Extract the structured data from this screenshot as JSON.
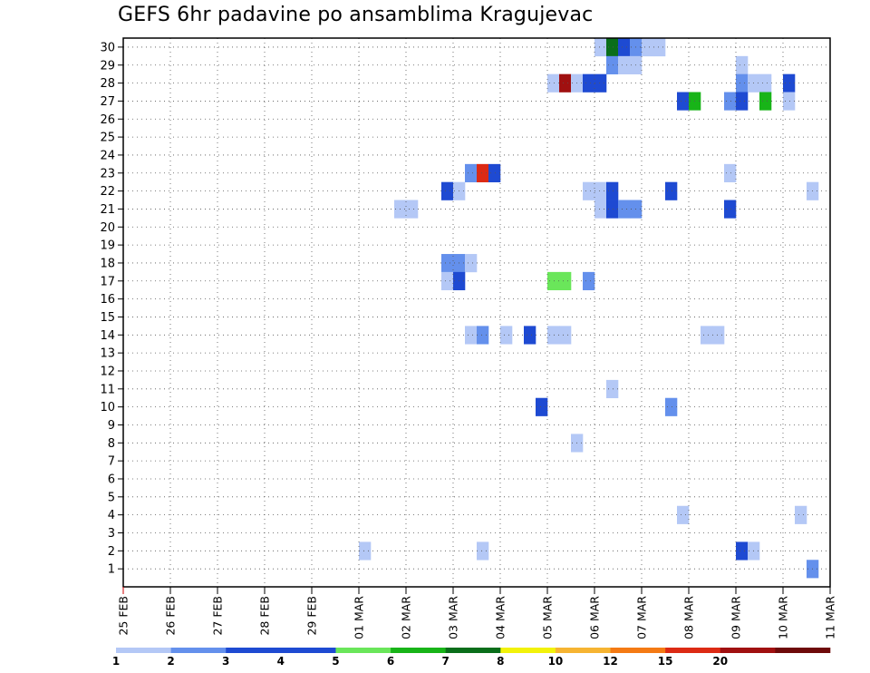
{
  "chart_data": {
    "type": "heatmap",
    "title": "GEFS 6hr padavine po ansamblima Kragujevac",
    "x_start": "25 FEB",
    "x_end": "11 MAR",
    "x_ticks": [
      "25 FEB",
      "26 FEB",
      "27 FEB",
      "28 FEB",
      "29 FEB",
      "01 MAR",
      "02 MAR",
      "03 MAR",
      "04 MAR",
      "05 MAR",
      "06 MAR",
      "07 MAR",
      "08 MAR",
      "09 MAR",
      "10 MAR",
      "11 MAR"
    ],
    "y_ticks": [
      "1",
      "2",
      "3",
      "4",
      "5",
      "6",
      "7",
      "8",
      "9",
      "10",
      "11",
      "12",
      "13",
      "14",
      "15",
      "16",
      "17",
      "18",
      "19",
      "20",
      "21",
      "22",
      "23",
      "24",
      "25",
      "26",
      "27",
      "28",
      "29",
      "30"
    ],
    "grid": true,
    "colorbar": {
      "labels": [
        "1",
        "2",
        "3",
        "4",
        "5",
        "6",
        "7",
        "8",
        "10",
        "12",
        "15",
        "20"
      ],
      "colors": [
        "#b4c8f6",
        "#6490ec",
        "#1e4ad2",
        "#1e4ad2",
        "#6ae65a",
        "#18b418",
        "#0a6e1a",
        "#f2f20a",
        "#f6b432",
        "#f47a14",
        "#dc2a14",
        "#a01010",
        "#6e0a0a"
      ]
    },
    "cells": [
      {
        "member": 30,
        "day": "06 MAR",
        "hour": 0,
        "c": 1
      },
      {
        "member": 30,
        "day": "06 MAR",
        "hour": 6,
        "c": 7
      },
      {
        "member": 30,
        "day": "06 MAR",
        "hour": 12,
        "c": 3
      },
      {
        "member": 30,
        "day": "06 MAR",
        "hour": 18,
        "c": 2
      },
      {
        "member": 30,
        "day": "07 MAR",
        "hour": 0,
        "c": 1
      },
      {
        "member": 30,
        "day": "07 MAR",
        "hour": 6,
        "c": 1
      },
      {
        "member": 29,
        "day": "06 MAR",
        "hour": 6,
        "c": 2
      },
      {
        "member": 29,
        "day": "06 MAR",
        "hour": 12,
        "c": 1
      },
      {
        "member": 29,
        "day": "06 MAR",
        "hour": 18,
        "c": 1
      },
      {
        "member": 29,
        "day": "09 MAR",
        "hour": 0,
        "c": 1
      },
      {
        "member": 28,
        "day": "05 MAR",
        "hour": 0,
        "c": 1
      },
      {
        "member": 28,
        "day": "05 MAR",
        "hour": 6,
        "c": 12
      },
      {
        "member": 28,
        "day": "05 MAR",
        "hour": 12,
        "c": 1
      },
      {
        "member": 28,
        "day": "05 MAR",
        "hour": 18,
        "c": 3
      },
      {
        "member": 28,
        "day": "06 MAR",
        "hour": 0,
        "c": 3
      },
      {
        "member": 28,
        "day": "09 MAR",
        "hour": 0,
        "c": 2
      },
      {
        "member": 28,
        "day": "09 MAR",
        "hour": 6,
        "c": 1
      },
      {
        "member": 28,
        "day": "09 MAR",
        "hour": 12,
        "c": 1
      },
      {
        "member": 28,
        "day": "10 MAR",
        "hour": 0,
        "c": 3
      },
      {
        "member": 27,
        "day": "07 MAR",
        "hour": 18,
        "c": 3
      },
      {
        "member": 27,
        "day": "08 MAR",
        "hour": 0,
        "c": 6
      },
      {
        "member": 27,
        "day": "08 MAR",
        "hour": 18,
        "c": 2
      },
      {
        "member": 27,
        "day": "09 MAR",
        "hour": 0,
        "c": 3
      },
      {
        "member": 27,
        "day": "09 MAR",
        "hour": 12,
        "c": 6
      },
      {
        "member": 27,
        "day": "10 MAR",
        "hour": 0,
        "c": 1
      },
      {
        "member": 23,
        "day": "03 MAR",
        "hour": 6,
        "c": 2
      },
      {
        "member": 23,
        "day": "03 MAR",
        "hour": 12,
        "c": 11
      },
      {
        "member": 23,
        "day": "03 MAR",
        "hour": 18,
        "c": 3
      },
      {
        "member": 23,
        "day": "08 MAR",
        "hour": 18,
        "c": 1
      },
      {
        "member": 22,
        "day": "02 MAR",
        "hour": 18,
        "c": 3
      },
      {
        "member": 22,
        "day": "03 MAR",
        "hour": 0,
        "c": 1
      },
      {
        "member": 22,
        "day": "05 MAR",
        "hour": 18,
        "c": 1
      },
      {
        "member": 22,
        "day": "06 MAR",
        "hour": 0,
        "c": 1
      },
      {
        "member": 22,
        "day": "06 MAR",
        "hour": 6,
        "c": 3
      },
      {
        "member": 22,
        "day": "07 MAR",
        "hour": 12,
        "c": 3
      },
      {
        "member": 22,
        "day": "10 MAR",
        "hour": 12,
        "c": 1
      },
      {
        "member": 21,
        "day": "01 MAR",
        "hour": 18,
        "c": 1
      },
      {
        "member": 21,
        "day": "02 MAR",
        "hour": 0,
        "c": 1
      },
      {
        "member": 21,
        "day": "06 MAR",
        "hour": 0,
        "c": 1
      },
      {
        "member": 21,
        "day": "06 MAR",
        "hour": 6,
        "c": 3
      },
      {
        "member": 21,
        "day": "06 MAR",
        "hour": 12,
        "c": 2
      },
      {
        "member": 21,
        "day": "06 MAR",
        "hour": 18,
        "c": 2
      },
      {
        "member": 21,
        "day": "08 MAR",
        "hour": 18,
        "c": 3
      },
      {
        "member": 18,
        "day": "02 MAR",
        "hour": 18,
        "c": 2
      },
      {
        "member": 18,
        "day": "03 MAR",
        "hour": 0,
        "c": 2
      },
      {
        "member": 18,
        "day": "03 MAR",
        "hour": 6,
        "c": 1
      },
      {
        "member": 17,
        "day": "02 MAR",
        "hour": 18,
        "c": 1
      },
      {
        "member": 17,
        "day": "03 MAR",
        "hour": 0,
        "c": 3
      },
      {
        "member": 17,
        "day": "05 MAR",
        "hour": 0,
        "c": 5
      },
      {
        "member": 17,
        "day": "05 MAR",
        "hour": 6,
        "c": 5
      },
      {
        "member": 17,
        "day": "05 MAR",
        "hour": 18,
        "c": 2
      },
      {
        "member": 14,
        "day": "03 MAR",
        "hour": 6,
        "c": 1
      },
      {
        "member": 14,
        "day": "03 MAR",
        "hour": 12,
        "c": 2
      },
      {
        "member": 14,
        "day": "04 MAR",
        "hour": 0,
        "c": 1
      },
      {
        "member": 14,
        "day": "04 MAR",
        "hour": 12,
        "c": 3
      },
      {
        "member": 14,
        "day": "05 MAR",
        "hour": 0,
        "c": 1
      },
      {
        "member": 14,
        "day": "05 MAR",
        "hour": 6,
        "c": 1
      },
      {
        "member": 14,
        "day": "08 MAR",
        "hour": 6,
        "c": 1
      },
      {
        "member": 14,
        "day": "08 MAR",
        "hour": 12,
        "c": 1
      },
      {
        "member": 11,
        "day": "06 MAR",
        "hour": 6,
        "c": 1
      },
      {
        "member": 10,
        "day": "04 MAR",
        "hour": 18,
        "c": 3
      },
      {
        "member": 10,
        "day": "07 MAR",
        "hour": 12,
        "c": 2
      },
      {
        "member": 8,
        "day": "05 MAR",
        "hour": 12,
        "c": 1
      },
      {
        "member": 4,
        "day": "07 MAR",
        "hour": 18,
        "c": 1
      },
      {
        "member": 4,
        "day": "10 MAR",
        "hour": 6,
        "c": 1
      },
      {
        "member": 2,
        "day": "01 MAR",
        "hour": 0,
        "c": 1
      },
      {
        "member": 2,
        "day": "03 MAR",
        "hour": 12,
        "c": 1
      },
      {
        "member": 2,
        "day": "09 MAR",
        "hour": 0,
        "c": 3
      },
      {
        "member": 2,
        "day": "09 MAR",
        "hour": 6,
        "c": 1
      },
      {
        "member": 1,
        "day": "10 MAR",
        "hour": 12,
        "c": 2
      }
    ]
  }
}
